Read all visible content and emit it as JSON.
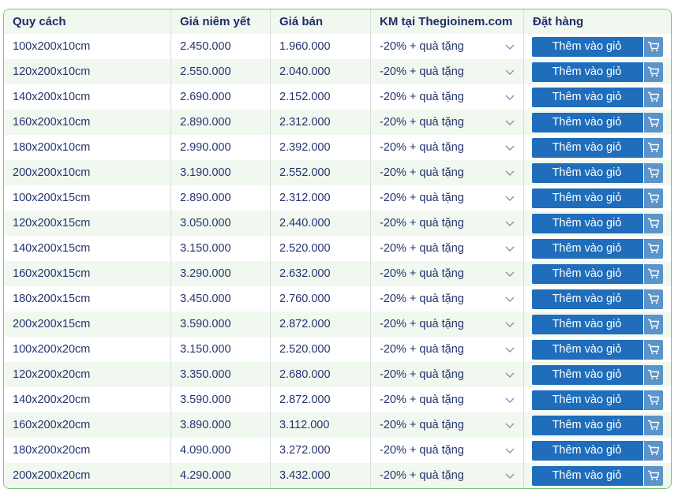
{
  "table": {
    "headers": [
      "Quy cách",
      "Giá niêm yết",
      "Giá bán",
      "KM tại Thegioinem.com",
      "Đặt hàng"
    ],
    "rows": [
      {
        "size": "100x200x10cm",
        "list_price": "2.450.000",
        "sale_price": "1.960.000",
        "promo": "-20% + quà tặng",
        "button": "Thêm vào giỏ"
      },
      {
        "size": "120x200x10cm",
        "list_price": "2.550.000",
        "sale_price": "2.040.000",
        "promo": "-20% + quà tặng",
        "button": "Thêm vào giỏ"
      },
      {
        "size": "140x200x10cm",
        "list_price": "2.690.000",
        "sale_price": "2.152.000",
        "promo": "-20% + quà tặng",
        "button": "Thêm vào giỏ"
      },
      {
        "size": "160x200x10cm",
        "list_price": "2.890.000",
        "sale_price": "2.312.000",
        "promo": "-20% + quà tặng",
        "button": "Thêm vào giỏ"
      },
      {
        "size": "180x200x10cm",
        "list_price": "2.990.000",
        "sale_price": "2.392.000",
        "promo": "-20% + quà tặng",
        "button": "Thêm vào giỏ"
      },
      {
        "size": "200x200x10cm",
        "list_price": "3.190.000",
        "sale_price": "2.552.000",
        "promo": "-20% + quà tặng",
        "button": "Thêm vào giỏ"
      },
      {
        "size": "100x200x15cm",
        "list_price": "2.890.000",
        "sale_price": "2.312.000",
        "promo": "-20% + quà tặng",
        "button": "Thêm vào giỏ"
      },
      {
        "size": "120x200x15cm",
        "list_price": "3.050.000",
        "sale_price": "2.440.000",
        "promo": "-20% + quà tặng",
        "button": "Thêm vào giỏ"
      },
      {
        "size": "140x200x15cm",
        "list_price": "3.150.000",
        "sale_price": "2.520.000",
        "promo": "-20% + quà tặng",
        "button": "Thêm vào giỏ"
      },
      {
        "size": "160x200x15cm",
        "list_price": "3.290.000",
        "sale_price": "2.632.000",
        "promo": "-20% + quà tặng",
        "button": "Thêm vào giỏ"
      },
      {
        "size": "180x200x15cm",
        "list_price": "3.450.000",
        "sale_price": "2.760.000",
        "promo": "-20% + quà tặng",
        "button": "Thêm vào giỏ"
      },
      {
        "size": "200x200x15cm",
        "list_price": "3.590.000",
        "sale_price": "2.872.000",
        "promo": "-20% + quà tặng",
        "button": "Thêm vào giỏ"
      },
      {
        "size": "100x200x20cm",
        "list_price": "3.150.000",
        "sale_price": "2.520.000",
        "promo": "-20% + quà tặng",
        "button": "Thêm vào giỏ"
      },
      {
        "size": "120x200x20cm",
        "list_price": "3.350.000",
        "sale_price": "2.680.000",
        "promo": "-20% + quà tặng",
        "button": "Thêm vào giỏ"
      },
      {
        "size": "140x200x20cm",
        "list_price": "3.590.000",
        "sale_price": "2.872.000",
        "promo": "-20% + quà tặng",
        "button": "Thêm vào giỏ"
      },
      {
        "size": "160x200x20cm",
        "list_price": "3.890.000",
        "sale_price": "3.112.000",
        "promo": "-20% + quà tặng",
        "button": "Thêm vào giỏ"
      },
      {
        "size": "180x200x20cm",
        "list_price": "4.090.000",
        "sale_price": "3.272.000",
        "promo": "-20% + quà tặng",
        "button": "Thêm vào giỏ"
      },
      {
        "size": "200x200x20cm",
        "list_price": "4.290.000",
        "sale_price": "3.432.000",
        "promo": "-20% + quà tặng",
        "button": "Thêm vào giỏ"
      }
    ]
  },
  "icons": {
    "promo_dropdown": "chevron-down-icon",
    "cart": "cart-icon"
  },
  "colors": {
    "header_text": "#1f2d6b",
    "cell_text": "#26336f",
    "row_alt_bg": "#f1f8ef",
    "border_accent": "#7bc47e",
    "button_bg": "#1f6dbb",
    "cart_icon_bg": "#5b94c9"
  }
}
